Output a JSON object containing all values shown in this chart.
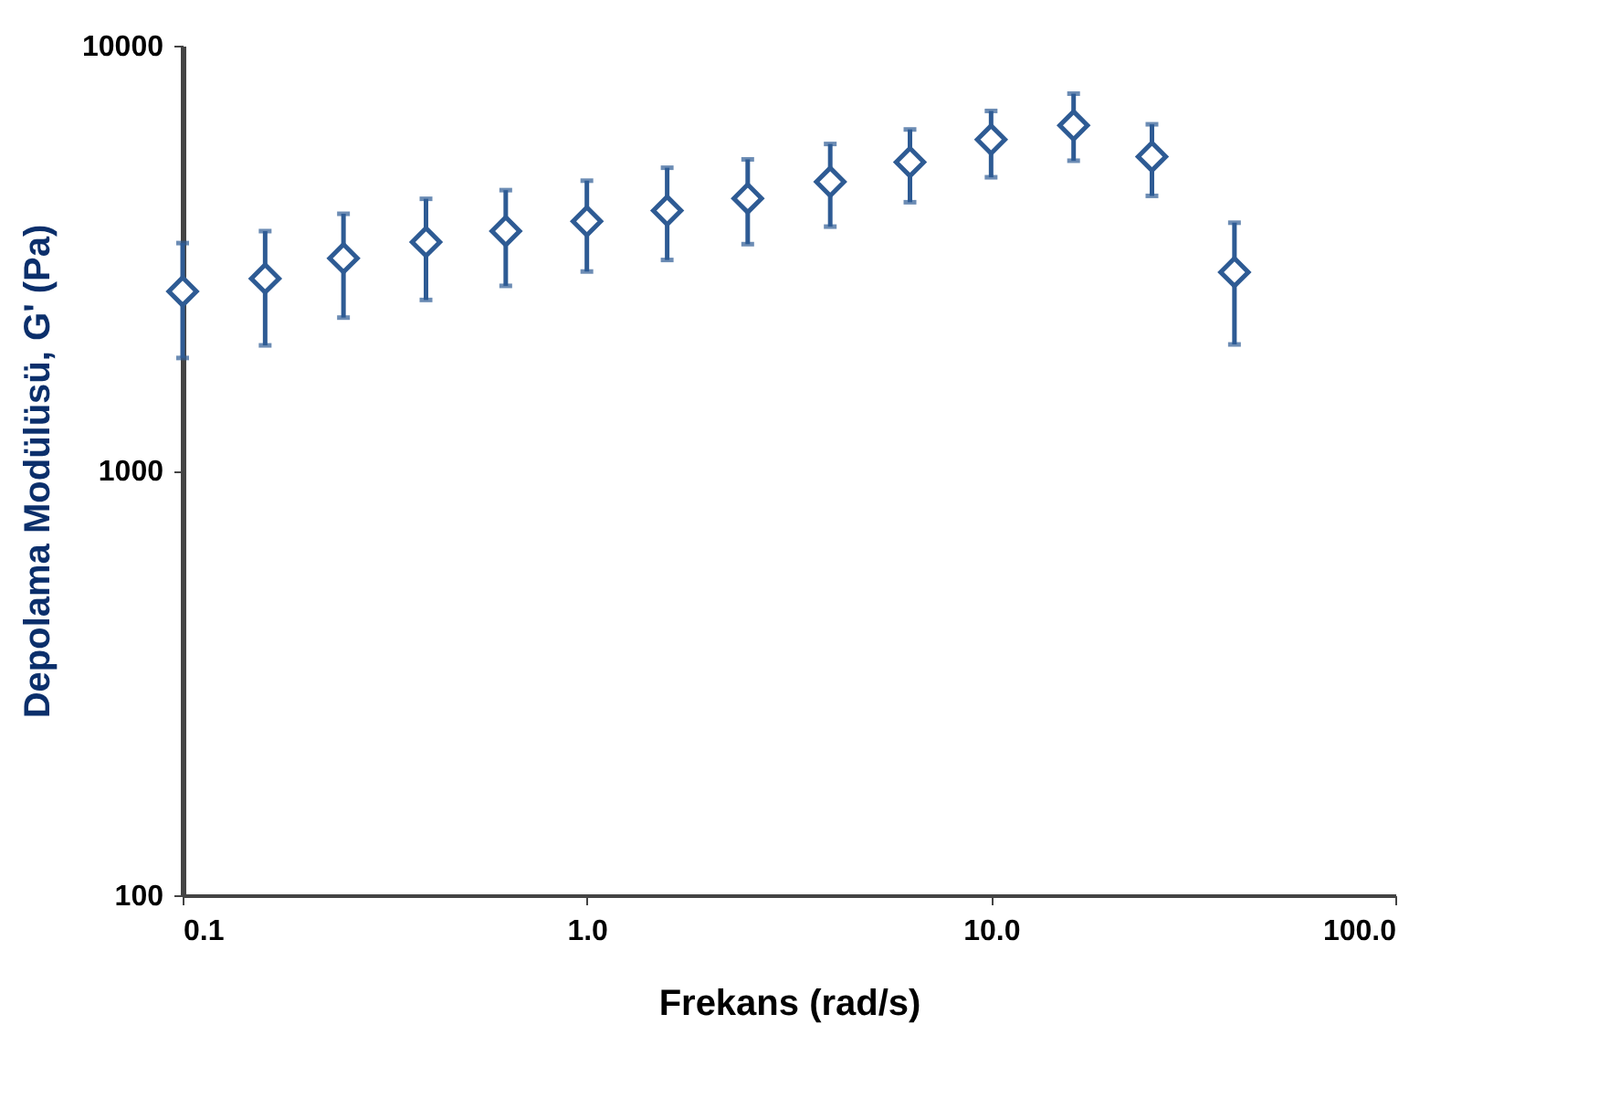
{
  "chart_data": {
    "type": "scatter",
    "xlabel": "Frekans (rad/s)",
    "ylabel": "Depolama Modülüsü, G' (Pa)",
    "log": "xy",
    "marker": "diamond",
    "color": "#2e5b94",
    "x": [
      0.1,
      0.16,
      0.25,
      0.4,
      0.63,
      1.0,
      1.58,
      2.5,
      4.0,
      6.3,
      10,
      16,
      25,
      40
    ],
    "values": [
      2640,
      2830,
      3160,
      3450,
      3660,
      3860,
      4090,
      4370,
      4780,
      5320,
      6010,
      6490,
      5480,
      2930
    ],
    "errors": [
      [
        1840,
        3430
      ],
      [
        1970,
        3660
      ],
      [
        2290,
        4020
      ],
      [
        2520,
        4360
      ],
      [
        2720,
        4570
      ],
      [
        2940,
        4810
      ],
      [
        3130,
        5160
      ],
      [
        3410,
        5400
      ],
      [
        3750,
        5870
      ],
      [
        4280,
        6350
      ],
      [
        4900,
        7020
      ],
      [
        5360,
        7710
      ],
      [
        4430,
        6530
      ],
      [
        1980,
        3830
      ]
    ],
    "xlim": [
      0.1,
      100
    ],
    "xticks": [
      {
        "value": 0.1,
        "label": "0.1"
      },
      {
        "value": 1,
        "label": "1.0"
      },
      {
        "value": 10,
        "label": "10.0"
      },
      {
        "value": 100,
        "label": "100.0"
      }
    ],
    "ylim": [
      100,
      10000
    ],
    "yticks": [
      100,
      1000,
      10000
    ]
  }
}
